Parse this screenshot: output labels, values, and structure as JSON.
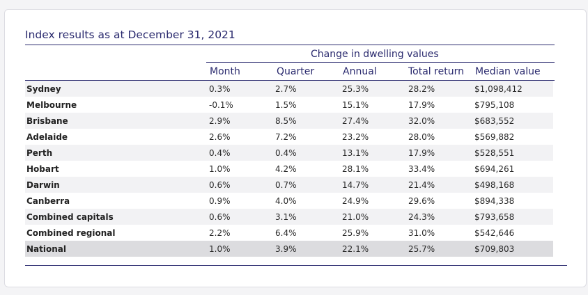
{
  "title": "Index results as at December 31, 2021",
  "group_header": "Change in dwelling values",
  "columns": [
    "Month",
    "Quarter",
    "Annual",
    "Total return",
    "Median value"
  ],
  "rows": [
    {
      "name": "Sydney",
      "month": "0.3%",
      "quarter": "2.7%",
      "annual": "25.3%",
      "total": "28.2%",
      "median": "$1,098,412"
    },
    {
      "name": "Melbourne",
      "month": "-0.1%",
      "quarter": "1.5%",
      "annual": "15.1%",
      "total": "17.9%",
      "median": "$795,108"
    },
    {
      "name": "Brisbane",
      "month": "2.9%",
      "quarter": "8.5%",
      "annual": "27.4%",
      "total": "32.0%",
      "median": "$683,552"
    },
    {
      "name": "Adelaide",
      "month": "2.6%",
      "quarter": "7.2%",
      "annual": "23.2%",
      "total": "28.0%",
      "median": "$569,882"
    },
    {
      "name": "Perth",
      "month": "0.4%",
      "quarter": "0.4%",
      "annual": "13.1%",
      "total": "17.9%",
      "median": "$528,551"
    },
    {
      "name": "Hobart",
      "month": "1.0%",
      "quarter": "4.2%",
      "annual": "28.1%",
      "total": "33.4%",
      "median": "$694,261"
    },
    {
      "name": "Darwin",
      "month": "0.6%",
      "quarter": "0.7%",
      "annual": "14.7%",
      "total": "21.4%",
      "median": "$498,168"
    },
    {
      "name": "Canberra",
      "month": "0.9%",
      "quarter": "4.0%",
      "annual": "24.9%",
      "total": "29.6%",
      "median": "$894,338"
    },
    {
      "name": "Combined capitals",
      "month": "0.6%",
      "quarter": "3.1%",
      "annual": "21.0%",
      "total": "24.3%",
      "median": "$793,658"
    },
    {
      "name": "Combined regional",
      "month": "2.2%",
      "quarter": "6.4%",
      "annual": "25.9%",
      "total": "31.0%",
      "median": "$542,646"
    },
    {
      "name": "National",
      "month": "1.0%",
      "quarter": "3.9%",
      "annual": "22.1%",
      "total": "25.7%",
      "median": "$709,803"
    }
  ],
  "colors": {
    "accent": "#2a2a6e",
    "row_alt": "#f2f2f4",
    "row_national": "#dcdcdf"
  }
}
